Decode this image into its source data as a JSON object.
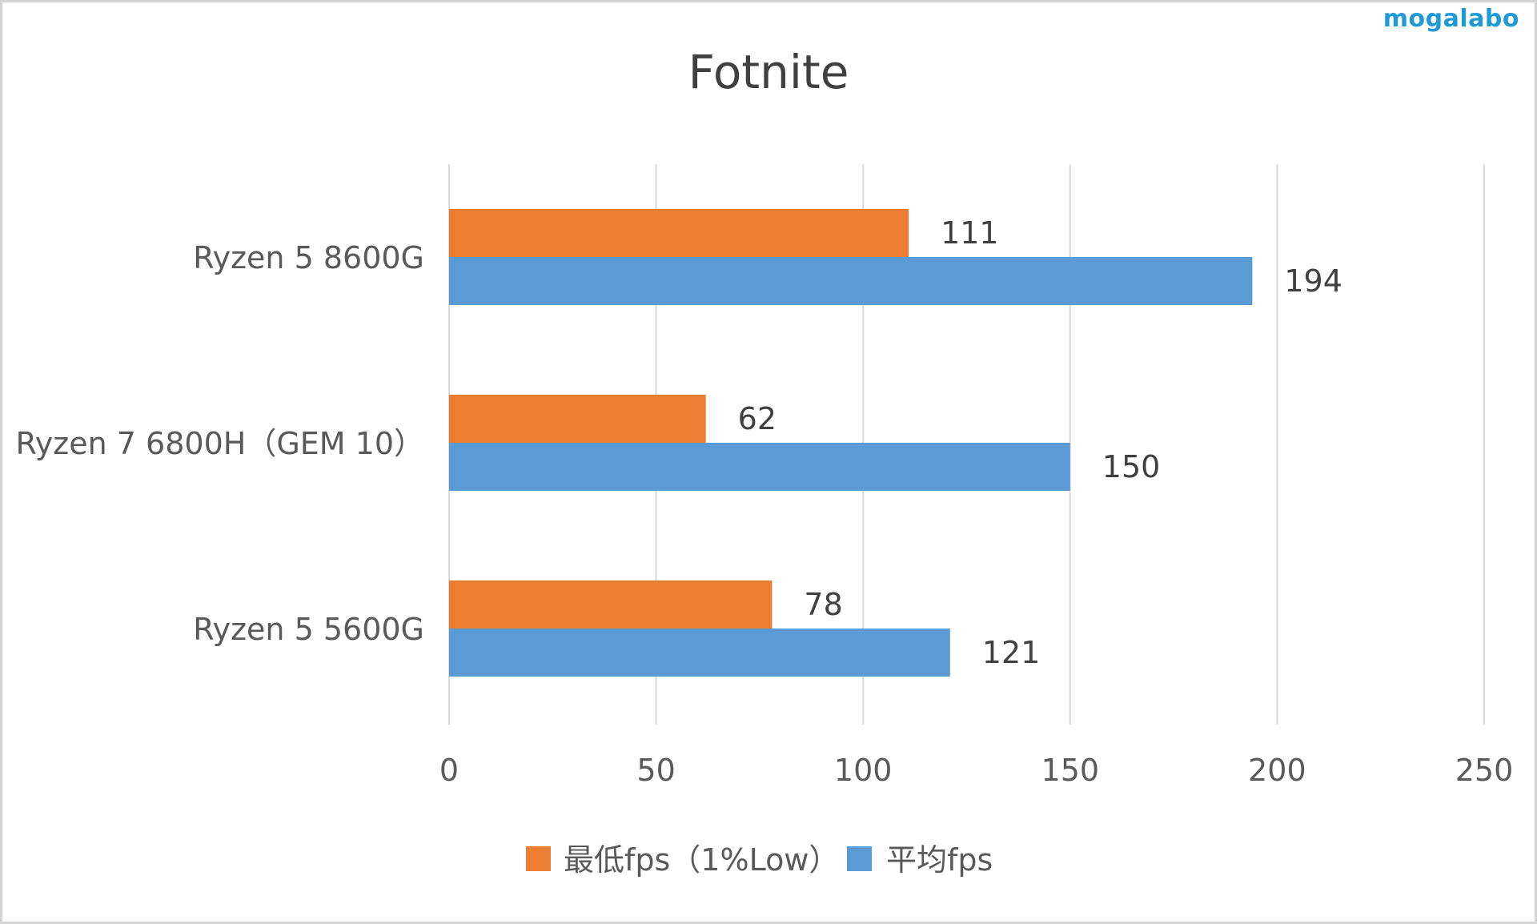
{
  "watermark": "mogalabo",
  "chart_data": {
    "type": "bar",
    "orientation": "horizontal",
    "title": "Fotnite",
    "categories": [
      "Ryzen 5 8600G",
      "Ryzen 7 6800H（GEM 10）",
      "Ryzen 5 5600G"
    ],
    "series": [
      {
        "name": "最低fps（1%Low）",
        "values": [
          111,
          62,
          78
        ],
        "color": "#ED7D31"
      },
      {
        "name": "平均fps",
        "values": [
          194,
          150,
          121
        ],
        "color": "#5B9BD5"
      }
    ],
    "xlim": [
      0,
      250
    ],
    "xticks": [
      0,
      50,
      100,
      150,
      200,
      250
    ],
    "grid": true,
    "legend_position": "bottom",
    "data_labels": true
  }
}
